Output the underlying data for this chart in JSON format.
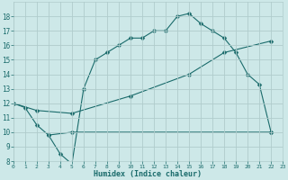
{
  "line1_x": [
    0,
    1,
    2,
    3,
    4,
    5,
    6,
    7,
    8,
    9,
    10,
    11,
    12,
    13,
    14,
    15,
    16,
    17,
    18,
    19,
    20,
    21,
    22
  ],
  "line1_y": [
    12.0,
    11.7,
    10.5,
    9.8,
    8.5,
    7.8,
    13.0,
    15.0,
    15.5,
    16.0,
    16.5,
    16.5,
    17.0,
    17.0,
    18.0,
    18.2,
    17.5,
    17.0,
    16.5,
    15.5,
    14.0,
    13.3,
    10.0
  ],
  "line2_x": [
    0,
    2,
    5,
    10,
    15,
    18,
    22
  ],
  "line2_y": [
    12.0,
    11.5,
    11.3,
    12.5,
    14.0,
    15.5,
    16.3
  ],
  "line3_x": [
    3,
    5,
    22
  ],
  "line3_y": [
    9.8,
    10.0,
    10.0
  ],
  "color": "#1a6b6b",
  "bg_color": "#cde8e8",
  "grid_color": "#b0cccc",
  "xlabel": "Humidex (Indice chaleur)",
  "xlim": [
    0,
    23
  ],
  "ylim": [
    8,
    19
  ],
  "yticks": [
    8,
    9,
    10,
    11,
    12,
    13,
    14,
    15,
    16,
    17,
    18
  ],
  "xticks": [
    0,
    1,
    2,
    3,
    4,
    5,
    6,
    7,
    8,
    9,
    10,
    11,
    12,
    13,
    14,
    15,
    16,
    17,
    18,
    19,
    20,
    21,
    22,
    23
  ],
  "markersize": 2.5
}
